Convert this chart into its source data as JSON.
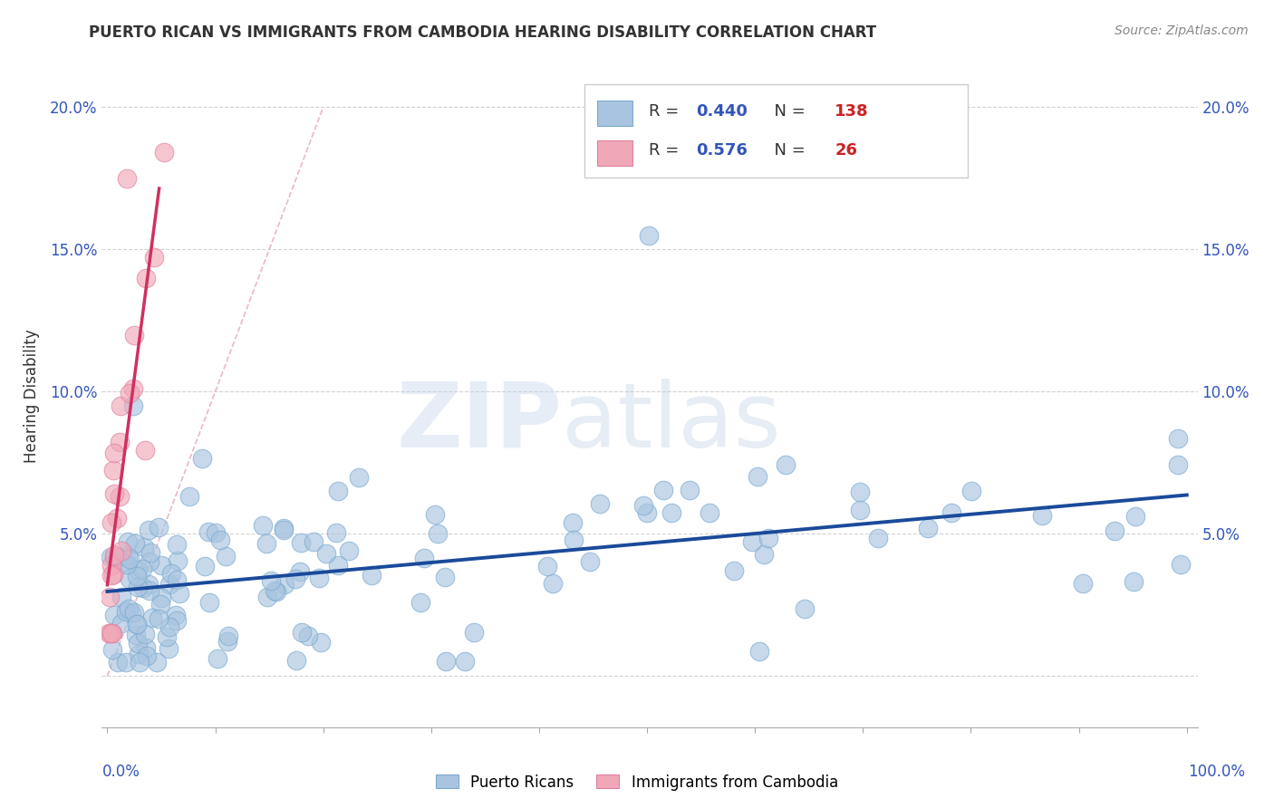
{
  "title": "PUERTO RICAN VS IMMIGRANTS FROM CAMBODIA HEARING DISABILITY CORRELATION CHART",
  "source": "Source: ZipAtlas.com",
  "ylabel": "Hearing Disability",
  "blue_R": 0.44,
  "blue_N": 138,
  "pink_R": 0.576,
  "pink_N": 26,
  "blue_color": "#a8c4e0",
  "pink_color": "#f0a8b8",
  "blue_line_color": "#1a4a9a",
  "pink_line_color": "#d03060",
  "diag_line_color": "#e8b0c0",
  "legend_label_blue": "Puerto Ricans",
  "legend_label_pink": "Immigrants from Cambodia",
  "ylim": [
    -0.018,
    0.215
  ],
  "xlim": [
    -0.005,
    1.01
  ],
  "ytick_vals": [
    0.0,
    0.05,
    0.1,
    0.15,
    0.2
  ],
  "ytick_labels": [
    "",
    "5.0%",
    "10.0%",
    "15.0%",
    "20.0%"
  ],
  "title_color": "#333333",
  "tick_color": "#3355bb",
  "source_color": "#888888"
}
